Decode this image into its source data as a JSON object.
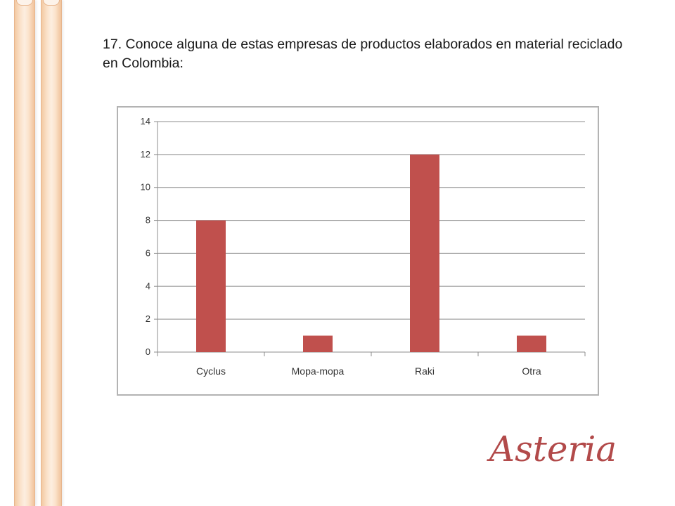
{
  "slide": {
    "question": "17. Conoce alguna de estas empresas de productos elaborados en material reciclado en Colombia:",
    "logo_text": "Asteria"
  },
  "colors": {
    "bar": "#c0504d",
    "logo": "#b24a4a",
    "grid": "#8c8c8c"
  },
  "chart_data": {
    "type": "bar",
    "categories": [
      "Cyclus",
      "Mopa-mopa",
      "Raki",
      "Otra"
    ],
    "values": [
      8,
      1,
      12,
      1
    ],
    "title": "",
    "xlabel": "",
    "ylabel": "",
    "ylim": [
      0,
      14
    ],
    "yticks": [
      0,
      2,
      4,
      6,
      8,
      10,
      12,
      14
    ],
    "grid": true,
    "legend": "none"
  }
}
